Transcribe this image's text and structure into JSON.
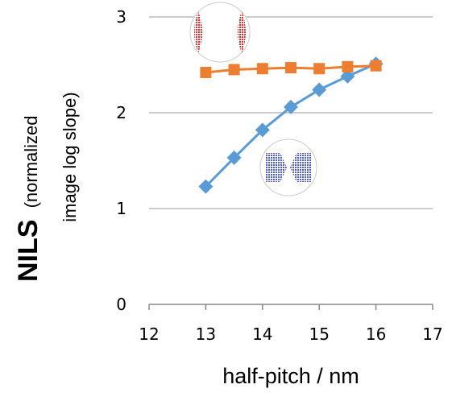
{
  "chart_data": {
    "type": "line",
    "xlabel": "half-pitch / nm",
    "ylabel": "NILS",
    "ylabel_note": [
      "(normalized",
      "image log slope)"
    ],
    "xlim": [
      12,
      17
    ],
    "xticks": [
      12,
      13,
      14,
      15,
      16,
      17
    ],
    "ylim": [
      0,
      3
    ],
    "yticks": [
      0,
      1,
      2,
      3
    ],
    "grid": true,
    "series": [
      {
        "color": "#5b9bd5",
        "marker": "diamond",
        "x": [
          13,
          13.5,
          14,
          14.5,
          15,
          15.5,
          16
        ],
        "values": [
          1.23,
          1.53,
          1.82,
          2.06,
          2.24,
          2.38,
          2.51
        ]
      },
      {
        "color": "#ed7d31",
        "marker": "square",
        "x": [
          13,
          13.5,
          14,
          14.5,
          15,
          15.5,
          16
        ],
        "values": [
          2.42,
          2.45,
          2.46,
          2.47,
          2.46,
          2.48,
          2.49
        ]
      }
    ]
  }
}
